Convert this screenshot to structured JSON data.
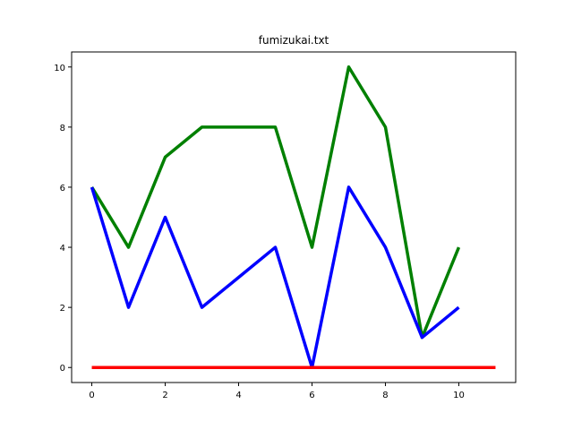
{
  "chart_data": {
    "type": "line",
    "title": "fumizukai.txt",
    "xlabel": "",
    "ylabel": "",
    "xlim": [
      -0.55,
      11.55
    ],
    "ylim": [
      -0.5,
      10.5
    ],
    "xticks": [
      0,
      2,
      4,
      6,
      8,
      10
    ],
    "yticks": [
      0,
      2,
      4,
      6,
      8,
      10
    ],
    "grid": false,
    "series": [
      {
        "color": "#008000",
        "x": [
          0,
          1,
          2,
          3,
          4,
          5,
          6,
          7,
          8,
          9,
          10
        ],
        "y": [
          6,
          4,
          7,
          8,
          8,
          8,
          4,
          10,
          8,
          1,
          4
        ]
      },
      {
        "color": "#0000ff",
        "x": [
          0,
          1,
          2,
          3,
          4,
          5,
          6,
          7,
          8,
          9,
          10
        ],
        "y": [
          6,
          2,
          5,
          2,
          3,
          4,
          0,
          6,
          4,
          1,
          2
        ]
      },
      {
        "color": "#ff0000",
        "x": [
          0,
          11
        ],
        "y": [
          0,
          0
        ]
      }
    ]
  }
}
